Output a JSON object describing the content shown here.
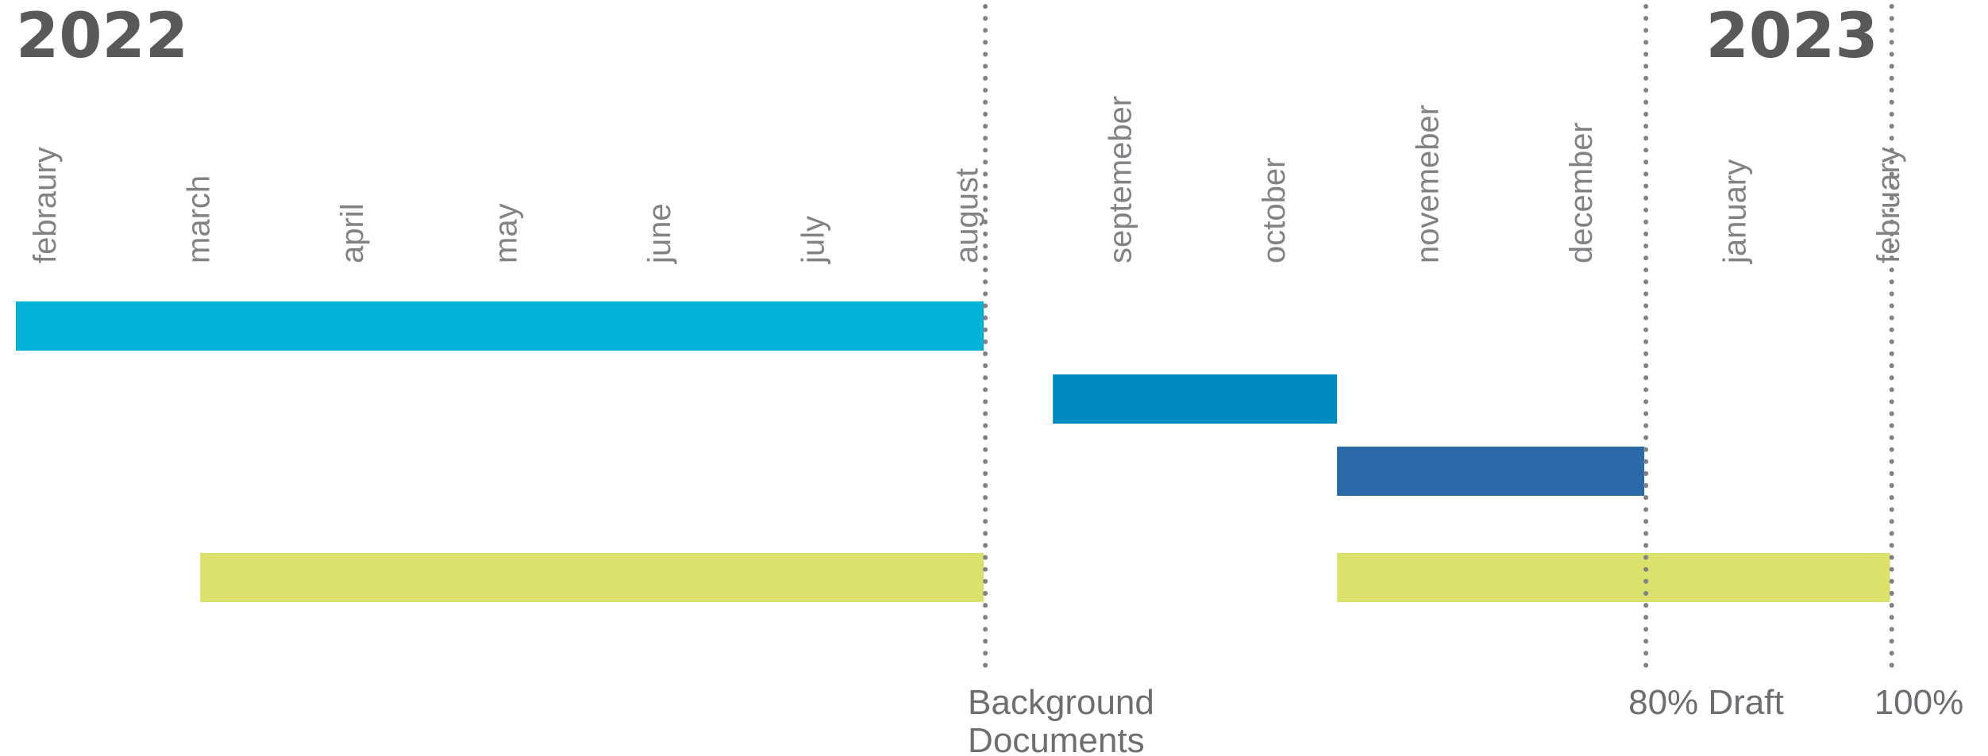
{
  "chart_data": {
    "type": "gantt",
    "years": [
      {
        "label": "2022",
        "month_index": 0
      },
      {
        "label": "2023",
        "month_index": 11
      }
    ],
    "months": [
      "febraury",
      "march",
      "april",
      "may",
      "june",
      "july",
      "august",
      "septemeber",
      "october",
      "novemeber",
      "december",
      "january",
      "february"
    ],
    "bars": [
      {
        "start": 0,
        "end": 6.3,
        "row": 0,
        "color": "#00b2d6"
      },
      {
        "start": 6.75,
        "end": 8.6,
        "row": 1,
        "color": "#008bc0"
      },
      {
        "start": 8.6,
        "end": 10.6,
        "row": 2,
        "color": "#2a6aa8"
      },
      {
        "start": 1.2,
        "end": 6.3,
        "row": 3,
        "color": "#dbe16a"
      },
      {
        "start": 8.6,
        "end": 12.2,
        "row": 3,
        "color": "#dbe16a"
      }
    ],
    "milestones": [
      {
        "label_lines": [
          "Background",
          "Documents"
        ],
        "position": 6.3
      },
      {
        "label_lines": [
          "80% Draft"
        ],
        "position": 10.6
      },
      {
        "label_lines": [
          "100%"
        ],
        "position": 12.2
      }
    ]
  }
}
